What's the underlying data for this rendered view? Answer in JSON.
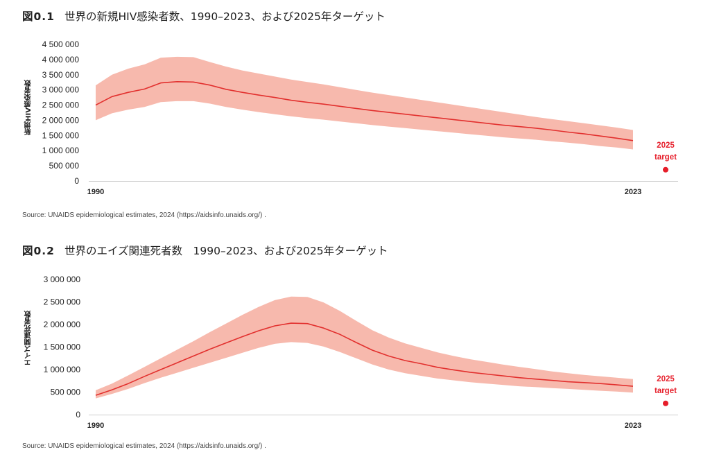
{
  "colors": {
    "band": "#f7b9ad",
    "line": "#e2302e",
    "target": "#e61e2a",
    "axis": "#cccccc"
  },
  "figures": [
    {
      "number": "図0.1",
      "title": "世界の新規HIV感染者数、1990–2023、および2025年ターゲット",
      "ylabel": "新規HIV感染者数",
      "source": "Source: UNAIDS epidemiological estimates, 2024 (https://aidsinfo.unaids.org/) .",
      "target_label": [
        "2025",
        "target"
      ]
    },
    {
      "number": "図0.2",
      "title": "世界のエイズ関連死者数　1990–2023、および2025年ターゲット",
      "ylabel": "エイズ関連死者数",
      "source": "Source: UNAIDS epidemiological estimates, 2024 (https://aidsinfo.unaids.org/) .",
      "target_label": [
        "2025",
        "target"
      ]
    }
  ],
  "chart_data": [
    {
      "type": "line",
      "title": "世界の新規HIV感染者数、1990–2023、および2025年ターゲット",
      "ylabel": "新規HIV感染者数",
      "xlabel": "",
      "x": [
        1990,
        1991,
        1992,
        1993,
        1994,
        1995,
        1996,
        1997,
        1998,
        1999,
        2000,
        2001,
        2002,
        2003,
        2004,
        2005,
        2006,
        2007,
        2008,
        2009,
        2010,
        2011,
        2012,
        2013,
        2014,
        2015,
        2016,
        2017,
        2018,
        2019,
        2020,
        2021,
        2022,
        2023
      ],
      "x_ticks": [
        "1990",
        "2023"
      ],
      "ylim": [
        0,
        4500000
      ],
      "y_ticks": [
        "0",
        "500 000",
        "1 000 000",
        "1 500 000",
        "2 000 000",
        "2 500 000",
        "3 000 000",
        "3 500 000",
        "4 000 000",
        "4 500 000"
      ],
      "series": [
        {
          "role": "estimate",
          "values": [
            2500000,
            2780000,
            2920000,
            3030000,
            3230000,
            3270000,
            3260000,
            3160000,
            3020000,
            2920000,
            2830000,
            2750000,
            2660000,
            2590000,
            2530000,
            2460000,
            2390000,
            2320000,
            2260000,
            2200000,
            2140000,
            2080000,
            2020000,
            1960000,
            1900000,
            1840000,
            1790000,
            1740000,
            1680000,
            1610000,
            1550000,
            1480000,
            1410000,
            1330000
          ]
        },
        {
          "role": "upper",
          "values": [
            3150000,
            3500000,
            3700000,
            3840000,
            4060000,
            4090000,
            4080000,
            3920000,
            3770000,
            3640000,
            3540000,
            3440000,
            3340000,
            3260000,
            3180000,
            3090000,
            3000000,
            2910000,
            2830000,
            2750000,
            2670000,
            2590000,
            2510000,
            2430000,
            2350000,
            2270000,
            2190000,
            2110000,
            2040000,
            1970000,
            1900000,
            1830000,
            1760000,
            1680000
          ]
        },
        {
          "role": "lower",
          "values": [
            2000000,
            2230000,
            2350000,
            2440000,
            2600000,
            2630000,
            2630000,
            2550000,
            2440000,
            2350000,
            2270000,
            2200000,
            2130000,
            2070000,
            2020000,
            1960000,
            1900000,
            1840000,
            1790000,
            1740000,
            1690000,
            1640000,
            1590000,
            1540000,
            1490000,
            1440000,
            1400000,
            1360000,
            1310000,
            1260000,
            1210000,
            1150000,
            1100000,
            1040000
          ]
        }
      ],
      "target": {
        "x": 2025,
        "y": 370000,
        "label": "2025 target"
      }
    },
    {
      "type": "line",
      "title": "世界のエイズ関連死者数　1990–2023、および2025年ターゲット",
      "ylabel": "エイズ関連死者数",
      "xlabel": "",
      "x": [
        1990,
        1991,
        1992,
        1993,
        1994,
        1995,
        1996,
        1997,
        1998,
        1999,
        2000,
        2001,
        2002,
        2003,
        2004,
        2005,
        2006,
        2007,
        2008,
        2009,
        2010,
        2011,
        2012,
        2013,
        2014,
        2015,
        2016,
        2017,
        2018,
        2019,
        2020,
        2021,
        2022,
        2023
      ],
      "x_ticks": [
        "1990",
        "2023"
      ],
      "ylim": [
        0,
        3000000
      ],
      "y_ticks": [
        "0",
        "500 000",
        "1 000 000",
        "1 500 000",
        "2 000 000",
        "2 500 000",
        "3 000 000"
      ],
      "series": [
        {
          "role": "estimate",
          "values": [
            430000,
            550000,
            690000,
            850000,
            1000000,
            1150000,
            1300000,
            1450000,
            1590000,
            1730000,
            1860000,
            1970000,
            2030000,
            2020000,
            1920000,
            1780000,
            1600000,
            1430000,
            1300000,
            1200000,
            1130000,
            1050000,
            990000,
            940000,
            900000,
            860000,
            820000,
            790000,
            760000,
            730000,
            710000,
            690000,
            660000,
            630000
          ]
        },
        {
          "role": "upper",
          "values": [
            540000,
            690000,
            870000,
            1060000,
            1250000,
            1440000,
            1630000,
            1830000,
            2020000,
            2210000,
            2390000,
            2540000,
            2620000,
            2610000,
            2490000,
            2300000,
            2080000,
            1870000,
            1710000,
            1580000,
            1480000,
            1380000,
            1300000,
            1230000,
            1170000,
            1110000,
            1060000,
            1010000,
            960000,
            920000,
            880000,
            850000,
            820000,
            790000
          ]
        },
        {
          "role": "lower",
          "values": [
            360000,
            460000,
            570000,
            700000,
            820000,
            930000,
            1040000,
            1150000,
            1260000,
            1370000,
            1480000,
            1570000,
            1610000,
            1590000,
            1510000,
            1390000,
            1250000,
            1110000,
            1000000,
            920000,
            860000,
            800000,
            760000,
            720000,
            690000,
            660000,
            630000,
            610000,
            590000,
            570000,
            550000,
            530000,
            510000,
            490000
          ]
        }
      ],
      "target": {
        "x": 2025,
        "y": 250000,
        "label": "2025 target"
      }
    }
  ]
}
